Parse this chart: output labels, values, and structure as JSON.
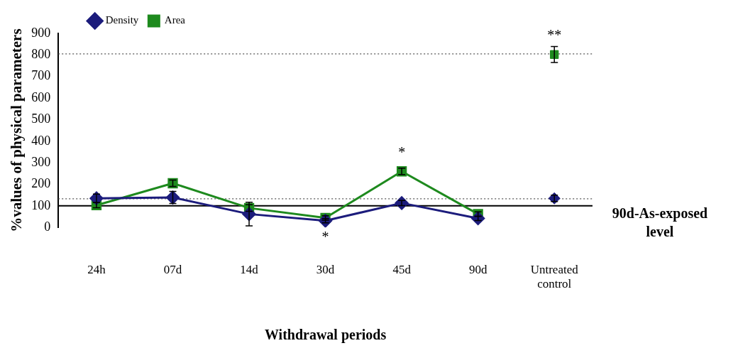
{
  "chart_data": {
    "type": "line",
    "xlabel": "Withdrawal periods",
    "ylabel": "%values of physical parameters",
    "categories": [
      "24h",
      "07d",
      "14d",
      "30d",
      "45d",
      "90d",
      "Untreated control"
    ],
    "ylim": [
      0,
      900
    ],
    "yticks": [
      0,
      100,
      200,
      300,
      400,
      500,
      600,
      700,
      800,
      900
    ],
    "grid": false,
    "legend": "top left",
    "line_style": "solid",
    "series": [
      {
        "name": "Density",
        "color": "#1c1c7c",
        "marker": "diamond",
        "values": [
          135,
          139,
          62,
          31,
          113,
          42,
          null
        ],
        "errors": [
          20,
          28,
          55,
          10,
          12,
          10,
          null
        ]
      },
      {
        "name": "Area",
        "color": "#1e8a1e",
        "marker": "square",
        "values": [
          103,
          205,
          90,
          44,
          260,
          62,
          null
        ],
        "errors": [
          12,
          15,
          15,
          10,
          15,
          10,
          null
        ]
      },
      {
        "type": "scatter",
        "color": "#1c1c7c",
        "marker": "diamond",
        "x": [
          "Untreated control"
        ],
        "values": [
          135
        ],
        "errors": [
          15
        ]
      },
      {
        "type": "scatter",
        "color": "#1e8a1e",
        "marker": "square",
        "x": [
          "Untreated control"
        ],
        "values": [
          802
        ],
        "errors": [
          37
        ]
      }
    ],
    "ref_lines": [
      {
        "axis": "y",
        "value": 100,
        "label": "90d-As-exposed level",
        "color": "#000000",
        "line_style": "solid"
      },
      {
        "axis": "y",
        "value": 805,
        "label": null,
        "color": "#555555",
        "line_style": "dotted"
      },
      {
        "axis": "y",
        "value": 133,
        "label": null,
        "color": "#555555",
        "line_style": "dotted"
      }
    ],
    "annotations": [
      {
        "text": "*",
        "x": "30d",
        "y": 31
      },
      {
        "text": "*",
        "x": "45d",
        "y": 260
      },
      {
        "text": "**",
        "x": "Untreated control",
        "y": 802
      }
    ]
  }
}
